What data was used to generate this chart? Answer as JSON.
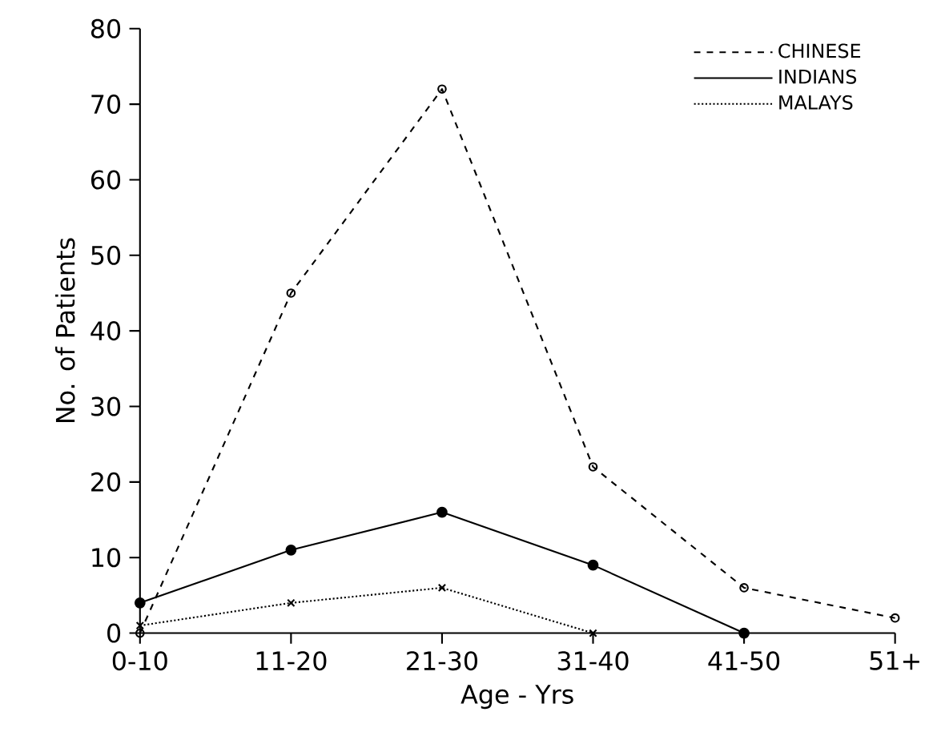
{
  "chart_data": {
    "type": "line",
    "xlabel": "Age - Yrs",
    "ylabel": "No. of Patients",
    "categories": [
      "0-10",
      "11-20",
      "21-30",
      "31-40",
      "41-50",
      "51+"
    ],
    "series": [
      {
        "name": "CHINESE",
        "color": "#000000",
        "line_style": "dashed",
        "marker": "circle",
        "values": [
          0,
          45,
          72,
          22,
          6,
          2
        ]
      },
      {
        "name": "INDIANS",
        "color": "#000000",
        "line_style": "solid",
        "marker": "filled circle",
        "values": [
          4,
          11,
          16,
          9,
          0,
          null
        ]
      },
      {
        "name": "MALAYS",
        "color": "#000000",
        "line_style": "dotted",
        "marker": "cross",
        "values": [
          1,
          4,
          6,
          0,
          null,
          null
        ]
      }
    ],
    "ylim": [
      0,
      80
    ],
    "yticks": [
      0,
      10,
      20,
      30,
      40,
      50,
      60,
      70,
      80
    ],
    "grid": false,
    "legend": "top right"
  }
}
